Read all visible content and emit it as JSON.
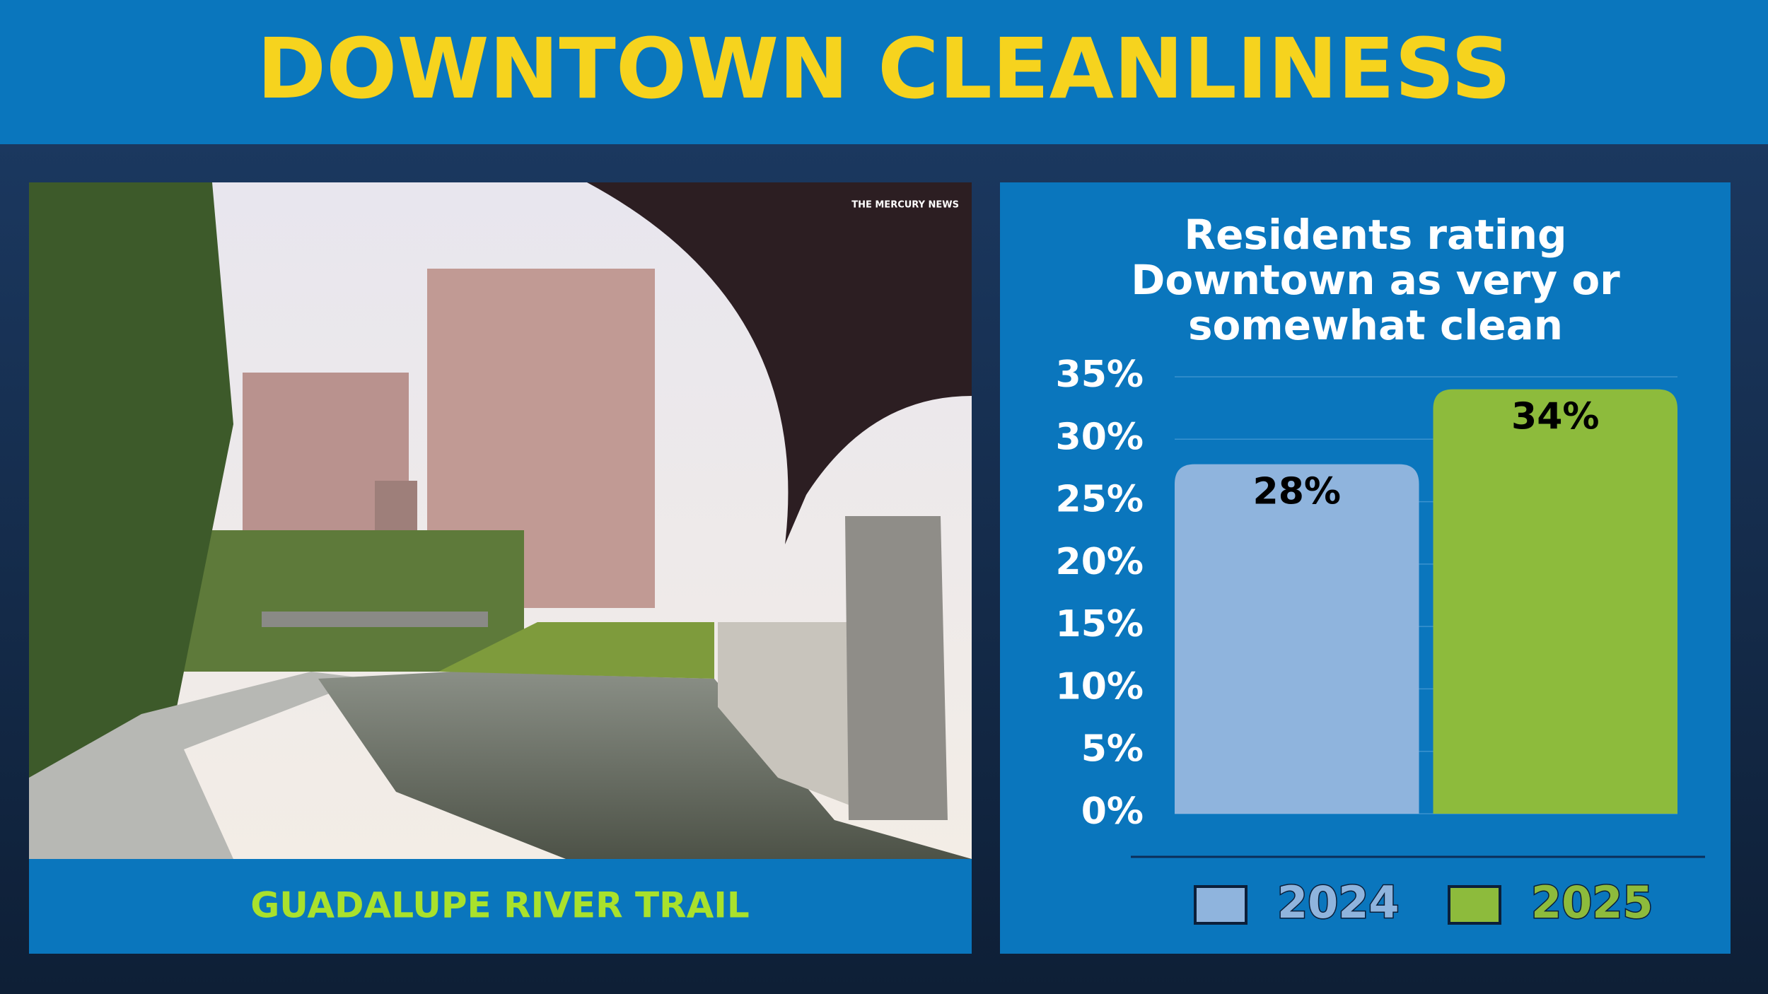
{
  "header": {
    "title": "DOWNTOWN CLEANLINESS"
  },
  "photo": {
    "credit": "THE MERCURY NEWS",
    "caption": "GUADALUPE RIVER TRAIL"
  },
  "chart_data": {
    "type": "bar",
    "title": "Residents rating Downtown as very or somewhat clean",
    "categories": [
      null
    ],
    "series": [
      {
        "name": "2024",
        "color": "#8fb4dd",
        "values": [
          28
        ],
        "value_labels": [
          "28%"
        ]
      },
      {
        "name": "2025",
        "color": "#8dbb3c",
        "values": [
          34
        ],
        "value_labels": [
          "34%"
        ]
      }
    ],
    "ylim": [
      0,
      35
    ],
    "yticks": [
      {
        "value": 0,
        "label": "0%"
      },
      {
        "value": 5,
        "label": "5%"
      },
      {
        "value": 10,
        "label": "10%"
      },
      {
        "value": 15,
        "label": "15%"
      },
      {
        "value": 20,
        "label": "20%"
      },
      {
        "value": 25,
        "label": "25%"
      },
      {
        "value": 30,
        "label": "30%"
      },
      {
        "value": 35,
        "label": "35%"
      }
    ],
    "grid": true
  }
}
